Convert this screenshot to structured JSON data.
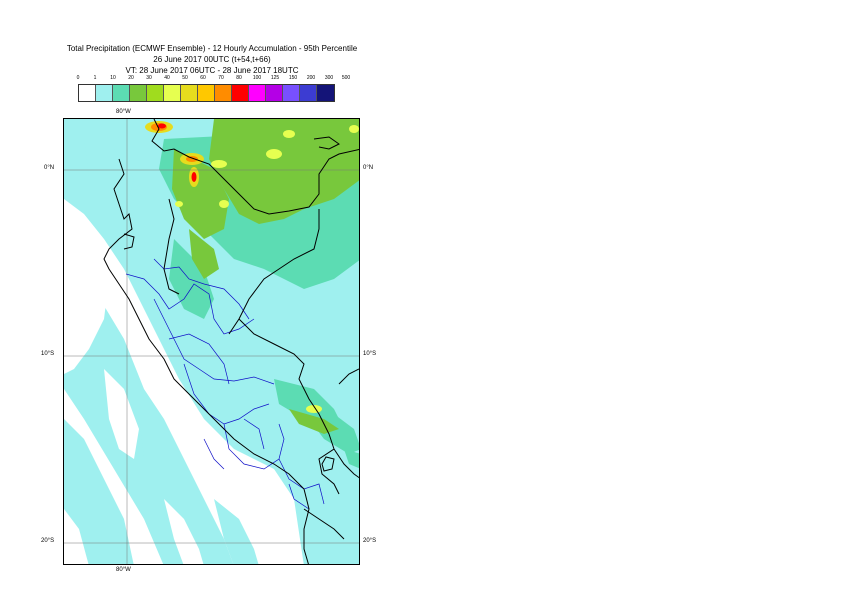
{
  "title": {
    "line1": "Total Precipitation (ECMWF Ensemble) - 12 Hourly Accumulation - 95th Percentile",
    "line2": "26 June 2017 00UTC (t+54,t+66)",
    "line3": "VT: 28 June 2017 06UTC - 28 June 2017 18UTC"
  },
  "legend": {
    "ticks": [
      "0",
      "1",
      "10",
      "20",
      "30",
      "40",
      "50",
      "60",
      "70",
      "80",
      "100",
      "125",
      "150",
      "200",
      "300",
      "500"
    ],
    "colors": [
      "#ffffff",
      "#9ff0ef",
      "#5cdcb3",
      "#78c83c",
      "#a0dc1e",
      "#e6ff50",
      "#e6dc1e",
      "#ffc800",
      "#ff8c00",
      "#ff0000",
      "#ff00ff",
      "#b400e6",
      "#7850ff",
      "#3c3cd2",
      "#141478"
    ]
  },
  "map": {
    "lon_labels": {
      "top": "80°W",
      "bottom": "80°W"
    },
    "lat_labels": {
      "left": [
        "0°N",
        "10°S",
        "20°S"
      ],
      "right": [
        "0°N",
        "10°S",
        "20°S"
      ]
    }
  }
}
